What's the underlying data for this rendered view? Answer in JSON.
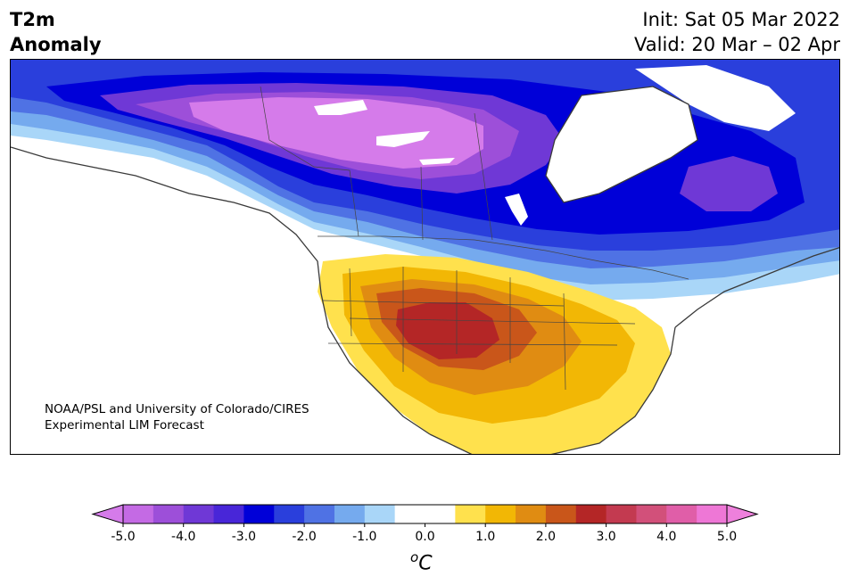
{
  "title": {
    "line1": "T2m",
    "line2": "Anomaly"
  },
  "dates": {
    "init": "Init: Sat 05 Mar 2022",
    "valid": "Valid: 20 Mar – 02 Apr"
  },
  "credit": {
    "line1": "NOAA/PSL and University of Colorado/CIRES",
    "line2": "Experimental LIM Forecast"
  },
  "colorbar": {
    "unit_sup": "o",
    "unit_main": "C",
    "ticks": [
      "-5.0",
      "-4.0",
      "-3.0",
      "-2.0",
      "-1.0",
      "0.0",
      "1.0",
      "2.0",
      "3.0",
      "4.0",
      "5.0"
    ],
    "colors": [
      "#c46ae4",
      "#9d4fd9",
      "#6f38d6",
      "#4826d8",
      "#0000d8",
      "#2a3fdc",
      "#4f72e4",
      "#75aaee",
      "#a9d6f8",
      "#ffffff",
      "#ffffff",
      "#ffe14d",
      "#f2b705",
      "#e08c12",
      "#c9561a",
      "#b42626",
      "#c33a50",
      "#d2507a",
      "#e05ea8",
      "#ee77d6"
    ],
    "under_color": "#d57bea",
    "over_color": "#ee80dc"
  },
  "anomaly_colors": {
    "magenta": "#d57bea",
    "violet": "#9d4fd9",
    "indigo": "#6f38d6",
    "blue_deep": "#0000d8",
    "blue_mid": "#2a3fdc",
    "blue_light": "#4f72e4",
    "sky": "#75aaee",
    "pale": "#a9d6f8",
    "yellow": "#ffe14d",
    "gold": "#f2b705",
    "orange": "#e08c12",
    "burnt": "#c9561a",
    "red": "#b42626"
  }
}
